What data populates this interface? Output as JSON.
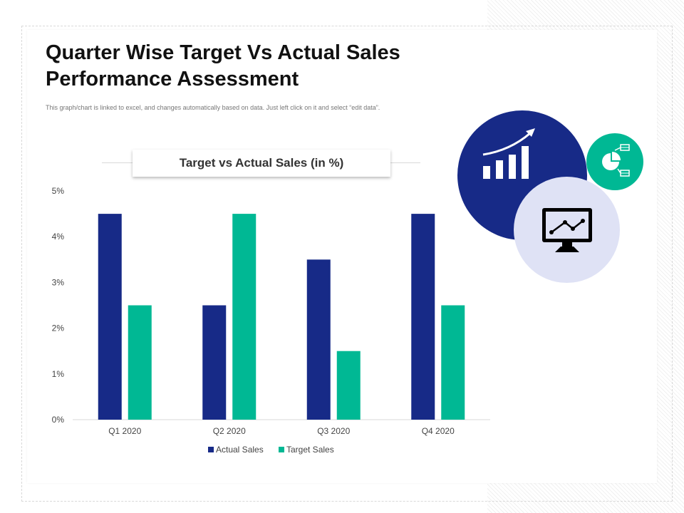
{
  "page": {
    "title": "Quarter Wise Target Vs Actual Sales Performance Assessment",
    "subtitle": "This graph/chart is linked to excel, and changes automatically based on data. Just left click on it and select “edit data”."
  },
  "colors": {
    "actual": "#172a87",
    "target": "#00b894",
    "light_circle": "#dfe2f5",
    "axis_text": "#444444"
  },
  "icons": [
    "growth-chart-icon",
    "pie-chart-icon",
    "monitor-line-chart-icon"
  ],
  "chart_data": {
    "type": "bar",
    "title": "Target vs Actual Sales (in %)",
    "categories": [
      "Q1 2020",
      "Q2 2020",
      "Q3 2020",
      "Q4 2020"
    ],
    "series": [
      {
        "name": "Actual Sales",
        "values": [
          4.5,
          2.5,
          3.5,
          4.5
        ]
      },
      {
        "name": "Target Sales",
        "values": [
          2.5,
          4.5,
          1.5,
          2.5
        ]
      }
    ],
    "ylim": [
      0,
      5
    ],
    "yticks": [
      0,
      1,
      2,
      3,
      4,
      5
    ],
    "ytick_labels": [
      "0%",
      "1%",
      "2%",
      "3%",
      "4%",
      "5%"
    ],
    "legend_position": "bottom",
    "grid": false
  }
}
